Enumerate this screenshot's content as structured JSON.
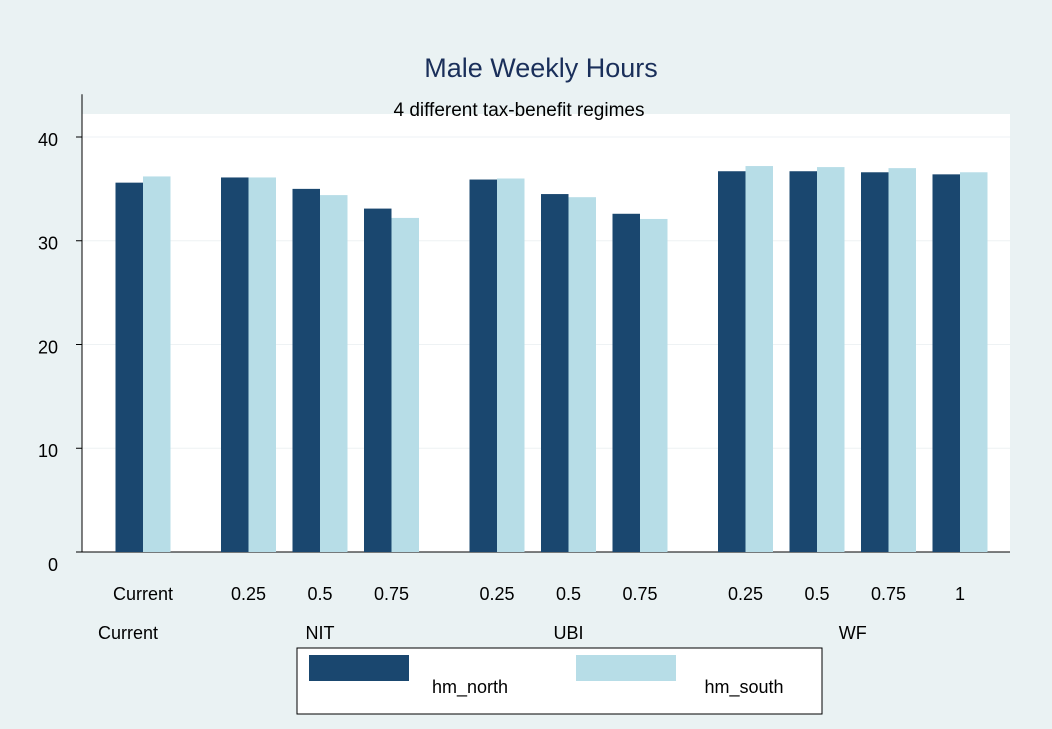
{
  "chart_data": {
    "type": "bar",
    "title": "Male Weekly Hours",
    "subtitle": "4 different tax-benefit regimes",
    "groups": [
      {
        "name": "Current",
        "categories": [
          "Current"
        ]
      },
      {
        "name": "NIT",
        "categories": [
          "0.25",
          "0.5",
          "0.75"
        ]
      },
      {
        "name": "UBI",
        "categories": [
          "0.25",
          "0.5",
          "0.75"
        ]
      },
      {
        "name": "WF",
        "categories": [
          "0.25",
          "0.5",
          "0.75",
          "1"
        ]
      }
    ],
    "series": [
      {
        "name": "hm_north",
        "color": "#1a476f",
        "values": [
          35.6,
          36.1,
          35.0,
          33.1,
          35.9,
          34.5,
          32.6,
          36.7,
          36.7,
          36.6,
          36.4
        ]
      },
      {
        "name": "hm_south",
        "color": "#b7dde7",
        "values": [
          36.2,
          36.1,
          34.4,
          32.2,
          36.0,
          34.2,
          32.1,
          37.2,
          37.1,
          37.0,
          36.6
        ]
      }
    ],
    "ylim": [
      0,
      42
    ],
    "yticks": [
      0,
      10,
      20,
      30,
      40
    ],
    "grid": true
  }
}
